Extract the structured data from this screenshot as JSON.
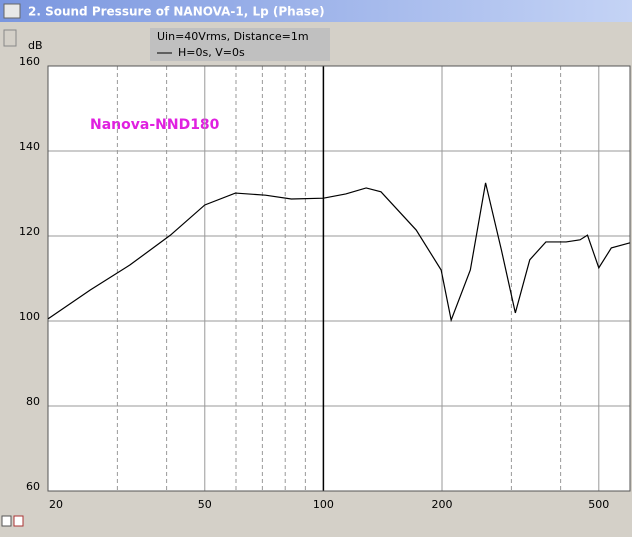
{
  "window_title": "2. Sound Pressure of NANOVA-1, Lp (Phase)",
  "chart_data": {
    "type": "line",
    "log_x": true,
    "grid": true,
    "ylabel": "dB",
    "legend_lines": [
      "Uin=40Vrms, Distance=1m",
      "H=0s, V=0s"
    ],
    "annotation": "Nanova-NND180",
    "annotation_color": "#e020e0",
    "xlim": [
      20,
      600
    ],
    "xticks": [
      20,
      50,
      100,
      200,
      500
    ],
    "x_minor_ticks": [
      30,
      40,
      60,
      70,
      80,
      90,
      300,
      400,
      600
    ],
    "ylim": [
      60,
      160
    ],
    "yticks": [
      60,
      80,
      100,
      120,
      140,
      160
    ],
    "series": [
      {
        "name": "H=0s, V=0s",
        "color": "#000000",
        "x": [
          20,
          25.6,
          32.3,
          40.9,
          50,
          59.8,
          71.3,
          82.9,
          100,
          114,
          128.4,
          140,
          172,
          199,
          211,
          236,
          258,
          283,
          307,
          334,
          367,
          413,
          448,
          468,
          500,
          538,
          600
        ],
        "values": [
          100.5,
          107.3,
          113.2,
          120.2,
          127.3,
          130.1,
          129.6,
          128.7,
          128.9,
          129.9,
          131.3,
          130.4,
          121.4,
          112,
          100.2,
          112,
          132.5,
          116.7,
          101.9,
          114.4,
          118.6,
          118.6,
          119.1,
          120.2,
          112.5,
          117.2,
          118.4
        ]
      }
    ]
  }
}
